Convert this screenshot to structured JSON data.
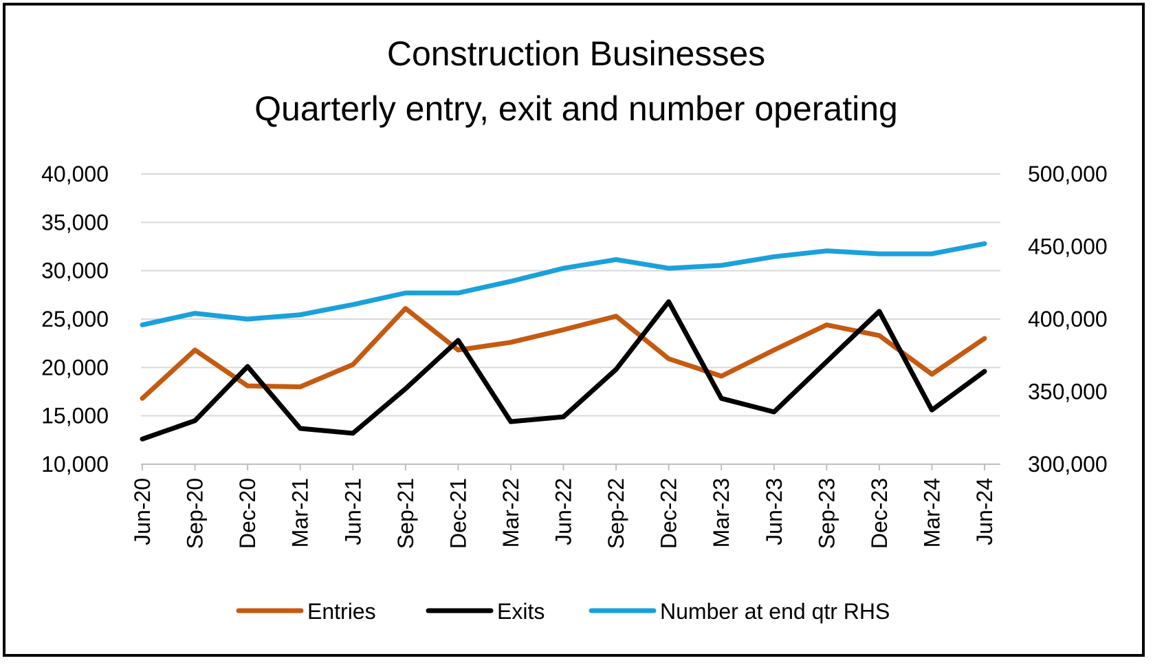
{
  "chart_data": {
    "type": "line",
    "title": [
      "Construction Businesses",
      "Quarterly entry, exit and number operating"
    ],
    "categories": [
      "Jun-20",
      "Sep-20",
      "Dec-20",
      "Mar-21",
      "Jun-21",
      "Sep-21",
      "Dec-21",
      "Mar-22",
      "Jun-22",
      "Sep-22",
      "Dec-22",
      "Mar-23",
      "Jun-23",
      "Sep-23",
      "Dec-23",
      "Mar-24",
      "Jun-24"
    ],
    "y_left": {
      "min": 10000,
      "max": 40000,
      "step": 5000,
      "tick_labels": [
        "10,000",
        "15,000",
        "20,000",
        "25,000",
        "30,000",
        "35,000",
        "40,000"
      ]
    },
    "y_right": {
      "min": 300000,
      "max": 500000,
      "step": 50000,
      "tick_labels": [
        "300,000",
        "350,000",
        "400,000",
        "450,000",
        "500,000"
      ]
    },
    "grid": true,
    "legend_position": "bottom",
    "series": [
      {
        "name": "Entries",
        "axis": "left",
        "color": "#C55A11",
        "values": [
          16800,
          21800,
          18100,
          18000,
          20300,
          26100,
          21800,
          22600,
          23900,
          25300,
          20900,
          19100,
          21800,
          24400,
          23300,
          19300,
          23000
        ]
      },
      {
        "name": "Exits",
        "axis": "left",
        "color": "#000000",
        "values": [
          12600,
          14500,
          20100,
          13700,
          13200,
          17800,
          22800,
          14400,
          14900,
          19800,
          26800,
          16800,
          15400,
          20600,
          25800,
          15600,
          19600
        ]
      },
      {
        "name": "Number at end qtr RHS",
        "axis": "right",
        "color": "#1AA1DB",
        "values": [
          396000,
          404000,
          400000,
          403000,
          410000,
          418000,
          418000,
          426000,
          435000,
          441000,
          435000,
          437000,
          443000,
          447000,
          445000,
          445000,
          452000
        ]
      }
    ]
  }
}
